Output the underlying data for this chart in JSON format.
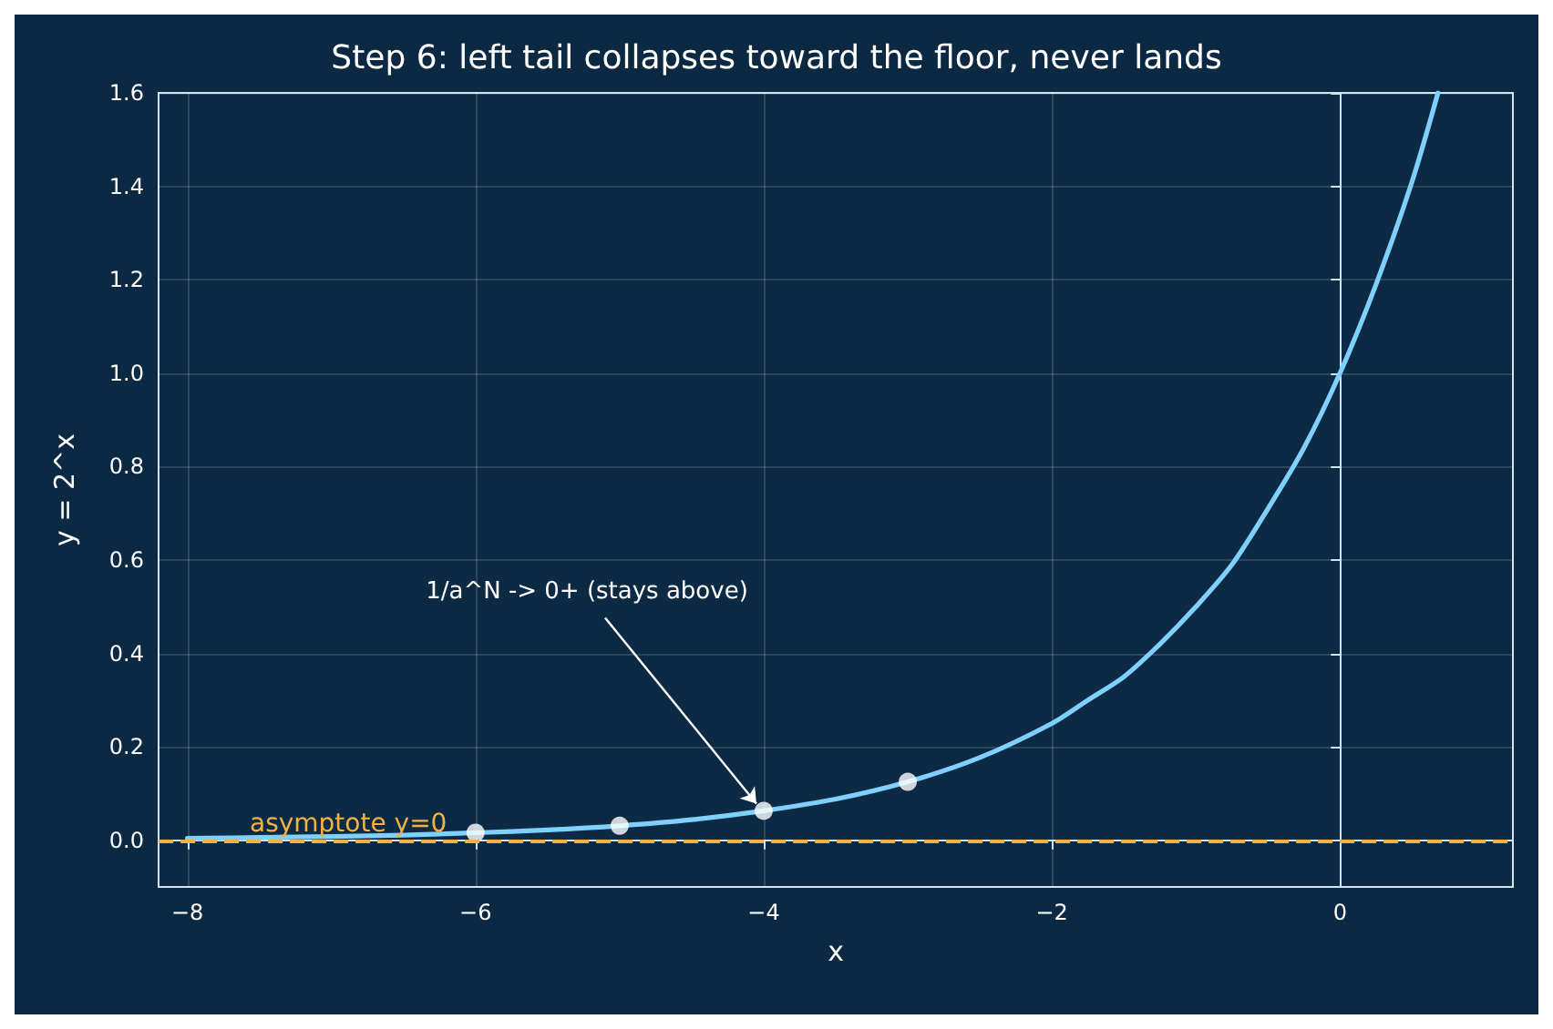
{
  "chart_data": {
    "type": "line",
    "title": "Step 6: left tail collapses toward the floor, never lands",
    "xlabel": "x",
    "ylabel": "y = 2^x",
    "xlim": [
      -8.2,
      1.2
    ],
    "xticks": [
      -8,
      -6,
      -4,
      -2,
      0
    ],
    "ylim": [
      -0.1,
      1.6
    ],
    "yticks": [
      {
        "value": 0,
        "label": "0.0"
      },
      0.2,
      0.4,
      0.6,
      0.8,
      {
        "value": 1,
        "label": "1.0"
      },
      1.2,
      1.4,
      1.6
    ],
    "grid": true,
    "line_style": "solid",
    "series": [
      {
        "color": "#7fd0ff",
        "x": [
          -8,
          -7.5,
          -7,
          -6.5,
          -6,
          -5.5,
          -5,
          -4.5,
          -4,
          -3.5,
          -3,
          -2.5,
          -2,
          -1.75,
          -1.5,
          -1.25,
          -1,
          -0.75,
          -0.5,
          -0.25,
          0,
          0.25,
          0.5,
          0.68
        ],
        "values": [
          0.004,
          0.006,
          0.008,
          0.011,
          0.016,
          0.022,
          0.031,
          0.044,
          0.063,
          0.088,
          0.125,
          0.177,
          0.25,
          0.3,
          0.35,
          0.42,
          0.5,
          0.59,
          0.71,
          0.84,
          1,
          1.19,
          1.41,
          1.6
        ]
      },
      {
        "type": "scatter",
        "color": "#ffffff",
        "marker": "circle",
        "x": [
          -6,
          -5,
          -4,
          -3
        ],
        "values": [
          0.016,
          0.031,
          0.063,
          0.125
        ]
      }
    ],
    "ref_lines": [
      {
        "axis": "y",
        "value": 0,
        "label": "asymptote y=0",
        "color": "#f5b042",
        "line_style": "dashed"
      }
    ],
    "annotations": [
      {
        "text": "1/a^N -> 0+ (stays above)",
        "x": -4,
        "y": 0.063
      }
    ]
  }
}
